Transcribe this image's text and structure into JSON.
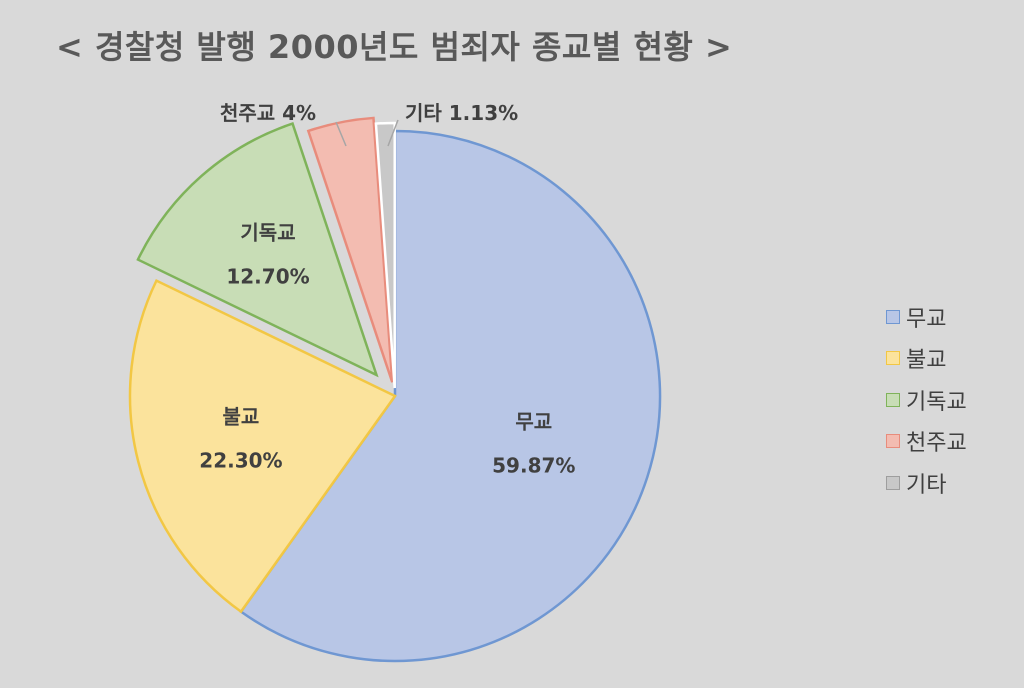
{
  "chart_data": {
    "type": "pie",
    "title": "< 경찰청 발행 2000년도 범죄자 종교별 현황 >",
    "slices": [
      {
        "name": "무교",
        "value": 59.87,
        "label": "59.87%",
        "fill": "#b8c6e6",
        "stroke": "#6f97d2"
      },
      {
        "name": "불교",
        "value": 22.3,
        "label": "22.30%",
        "fill": "#fbe39c",
        "stroke": "#f2c744"
      },
      {
        "name": "기독교",
        "value": 12.7,
        "label": "12.70%",
        "fill": "#c8ddb6",
        "stroke": "#7fb35a"
      },
      {
        "name": "천주교",
        "value": 4,
        "label": "4%",
        "fill": "#f3bcb1",
        "stroke": "#e88c7c"
      },
      {
        "name": "기타",
        "value": 1.13,
        "label": "1.13%",
        "fill": "#c8c8c8",
        "stroke": "#ffffff"
      }
    ],
    "legend_position": "right"
  }
}
